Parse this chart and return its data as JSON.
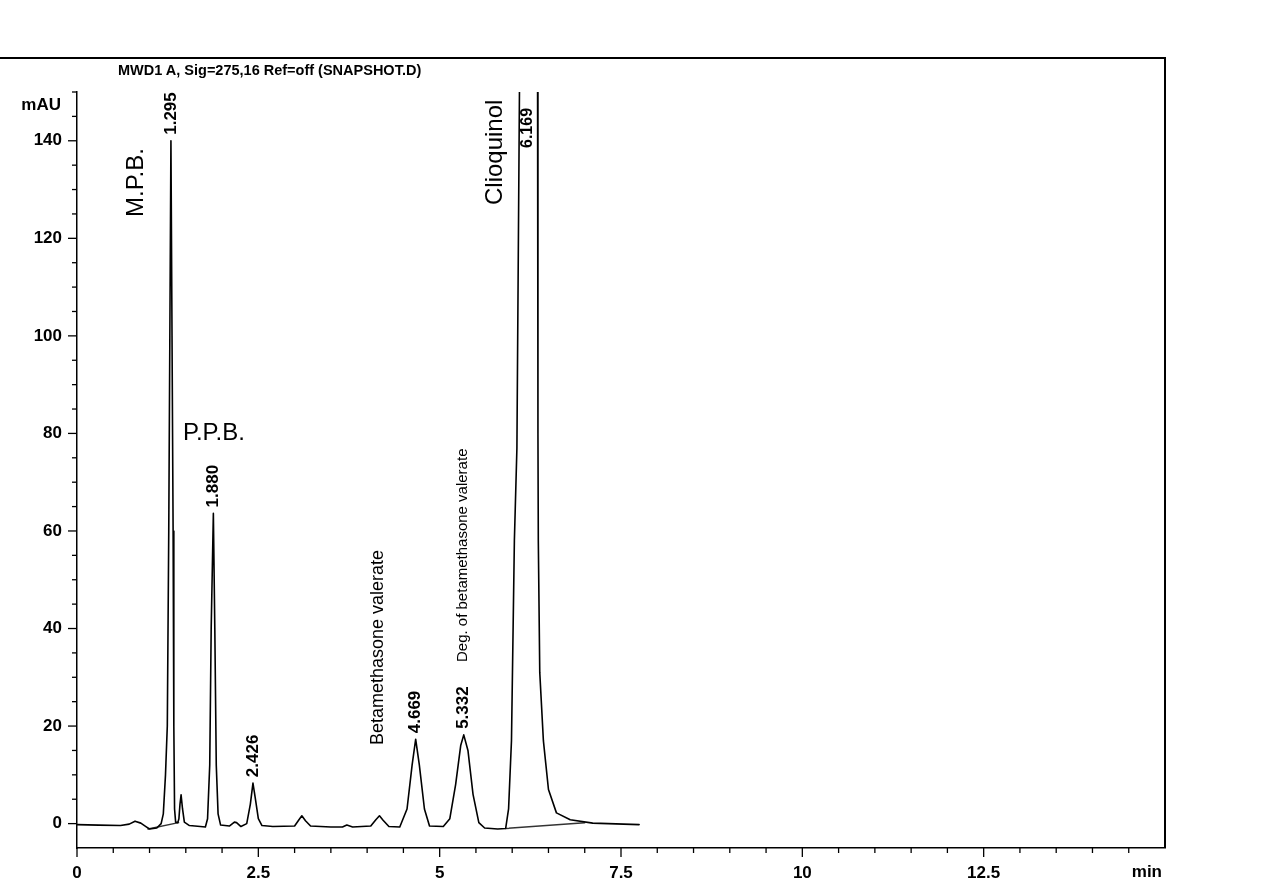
{
  "chart_data": {
    "type": "line",
    "title": "MWD1 A, Sig=275,16 Ref=off (SNAPSHOT.D)",
    "xlabel": "min",
    "ylabel": "mAU",
    "xlim": [
      0,
      15
    ],
    "xticks": [
      0,
      {
        "value": 0.5,
        "label": null
      },
      {
        "value": 1,
        "label": null
      },
      {
        "value": 1.5,
        "label": null
      },
      {
        "value": 2,
        "label": null
      },
      2.5,
      {
        "value": 3,
        "label": null
      },
      {
        "value": 3.5,
        "label": null
      },
      {
        "value": 4,
        "label": null
      },
      {
        "value": 4.5,
        "label": null
      },
      5,
      {
        "value": 5.5,
        "label": null
      },
      {
        "value": 6,
        "label": null
      },
      {
        "value": 6.5,
        "label": null
      },
      {
        "value": 7,
        "label": null
      },
      7.5,
      {
        "value": 8,
        "label": null
      },
      {
        "value": 8.5,
        "label": null
      },
      {
        "value": 9,
        "label": null
      },
      {
        "value": 9.5,
        "label": null
      },
      10,
      {
        "value": 10.5,
        "label": null
      },
      {
        "value": 11,
        "label": null
      },
      {
        "value": 11.5,
        "label": null
      },
      {
        "value": 12,
        "label": null
      },
      12.5,
      {
        "value": 13,
        "label": null
      },
      {
        "value": 13.5,
        "label": null
      },
      {
        "value": 14,
        "label": null
      },
      {
        "value": 14.5,
        "label": null
      }
    ],
    "ylim": [
      -5,
      150
    ],
    "yticks": [
      0,
      {
        "value": 5,
        "label": null
      },
      {
        "value": 10,
        "label": null
      },
      {
        "value": 15,
        "label": null
      },
      20,
      {
        "value": 25,
        "label": null
      },
      {
        "value": 30,
        "label": null
      },
      {
        "value": 35,
        "label": null
      },
      40,
      {
        "value": 45,
        "label": null
      },
      {
        "value": 50,
        "label": null
      },
      {
        "value": 55,
        "label": null
      },
      60,
      {
        "value": 65,
        "label": null
      },
      {
        "value": 70,
        "label": null
      },
      {
        "value": 75,
        "label": null
      },
      80,
      {
        "value": 85,
        "label": null
      },
      {
        "value": 90,
        "label": null
      },
      {
        "value": 95,
        "label": null
      },
      100,
      {
        "value": 105,
        "label": null
      },
      {
        "value": 110,
        "label": null
      },
      {
        "value": 115,
        "label": null
      },
      120,
      {
        "value": 125,
        "label": null
      },
      {
        "value": 130,
        "label": null
      },
      {
        "value": 135,
        "label": null
      },
      140,
      {
        "value": 145,
        "label": null
      },
      {
        "value": 150,
        "label": null
      }
    ],
    "grid": false,
    "legend": false,
    "marker": "none",
    "line_style": "solid",
    "series": [
      {
        "color": "#000000",
        "x": [
          0,
          0.3,
          0.6,
          0.72,
          0.8,
          0.88,
          0.95,
          1.0,
          1.1,
          1.16,
          1.19,
          1.22,
          1.245,
          1.265,
          1.28,
          1.295,
          1.31,
          1.325,
          1.335,
          1.345,
          1.36,
          1.39,
          1.405,
          1.42,
          1.435,
          1.455,
          1.48,
          1.55,
          1.7,
          1.77,
          1.8,
          1.83,
          1.85,
          1.88,
          1.9,
          1.92,
          1.945,
          1.98,
          2.1,
          2.17,
          2.2,
          2.26,
          2.34,
          2.39,
          2.426,
          2.46,
          2.5,
          2.55,
          2.7,
          3.0,
          3.06,
          3.1,
          3.15,
          3.22,
          3.5,
          3.66,
          3.72,
          3.8,
          4.05,
          4.12,
          4.17,
          4.22,
          4.3,
          4.45,
          4.55,
          4.62,
          4.669,
          4.72,
          4.79,
          4.86,
          5.05,
          5.14,
          5.22,
          5.29,
          5.332,
          5.39,
          5.46,
          5.54,
          5.62,
          5.8,
          5.91,
          5.95,
          5.99,
          6.03,
          6.065,
          6.1,
          6.225,
          6.35,
          6.355,
          6.36,
          6.38,
          6.43,
          6.5,
          6.61,
          6.8,
          7.11,
          7.75
        ],
        "values": [
          -0.2,
          -0.3,
          -0.4,
          -0.1,
          0.5,
          0.1,
          -0.6,
          -1.1,
          -0.9,
          0,
          2,
          10,
          20,
          60,
          100,
          140,
          100,
          60,
          20,
          3,
          0.3,
          0.2,
          1,
          4,
          5.9,
          3,
          0.3,
          -0.4,
          -0.6,
          -0.7,
          1,
          12,
          40,
          63.6,
          40,
          12,
          2,
          -0.3,
          -0.5,
          0.3,
          0.2,
          -0.6,
          0,
          4,
          8.3,
          5,
          1,
          -0.4,
          -0.6,
          -0.5,
          0.8,
          1.6,
          0.6,
          -0.5,
          -0.7,
          -0.7,
          -0.3,
          -0.7,
          -0.5,
          0.8,
          1.6,
          0.7,
          -0.6,
          -0.7,
          3,
          12,
          17.3,
          12,
          3,
          -0.5,
          -0.6,
          1,
          8,
          16,
          18.2,
          15,
          6,
          0.2,
          -0.9,
          -1.1,
          -1.0,
          3,
          17,
          58,
          77,
          150,
          null,
          150,
          80,
          58,
          31,
          17,
          7,
          2.2,
          0.8,
          0.1,
          -0.2
        ]
      },
      {
        "type": "line",
        "color": "#333333",
        "x": [
          0.98,
          1.4,
          1.41,
          5.91,
          7.0
        ],
        "values": [
          -1.1,
          0.2,
          null,
          -1.0,
          0.2
        ]
      }
    ],
    "annotations": [
      "M.P.B.",
      {
        "text": "1.295",
        "x": 1.295,
        "y": 140
      },
      "P.P.B.",
      {
        "text": "1.880",
        "x": 1.88,
        "y": 63.6
      },
      {
        "text": "2.426",
        "x": 2.426,
        "y": 8.3
      },
      "Betamethasone valerate",
      {
        "text": "4.669",
        "x": 4.669,
        "y": 17.3
      },
      {
        "text": "5.332",
        "x": 5.332,
        "y": 18.2
      },
      "Deg. of betamethasone valerate",
      "Clioquinol",
      "6.169"
    ]
  }
}
